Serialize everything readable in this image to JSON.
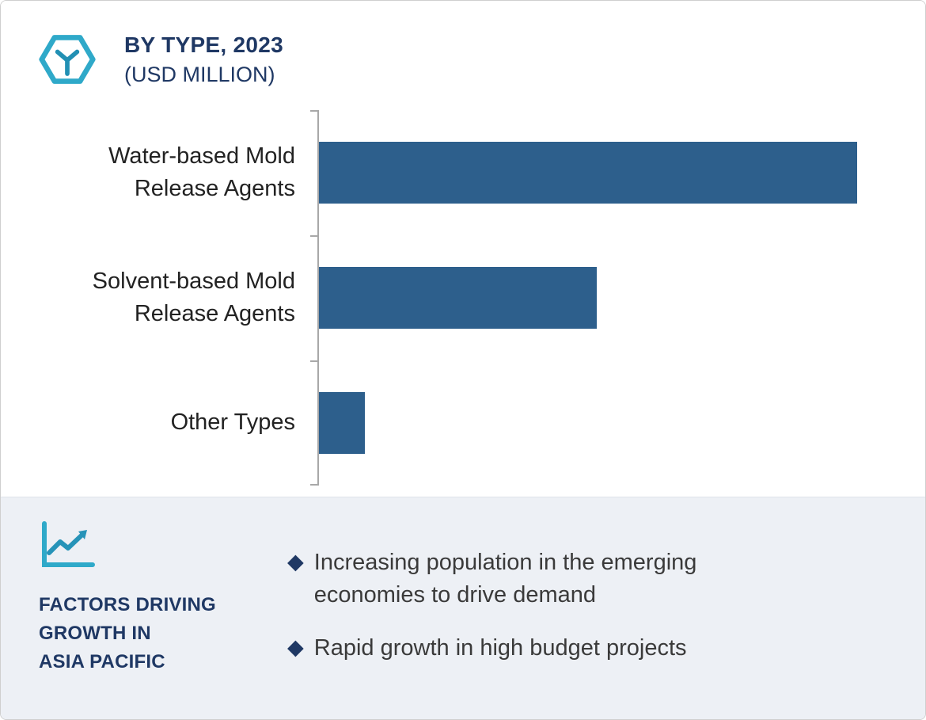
{
  "header": {
    "title": "BY TYPE, 2023",
    "subtitle": "(USD MILLION)"
  },
  "chart_data": {
    "type": "bar",
    "orientation": "horizontal",
    "title": "BY TYPE, 2023 (USD MILLION)",
    "categories": [
      "Water-based Mold Release Agents",
      "Solvent-based Mold Release Agents",
      "Other Types"
    ],
    "values": [
      100,
      51.6,
      8.5
    ],
    "xlim": [
      0,
      100
    ],
    "xlabel": "",
    "ylabel": "",
    "grid": false,
    "legend": false,
    "bar_color": "#2D5F8C"
  },
  "factors": {
    "heading": "FACTORS DRIVING\nGROWTH IN\nASIA PACIFIC",
    "bullets": [
      "Increasing population in the emerging economies to drive demand",
      "Rapid growth in high budget projects"
    ]
  },
  "icons": {
    "diamond_bullet": "◆"
  },
  "colors": {
    "bar": "#2D5F8C",
    "title_navy": "#1F3864",
    "accent_teal": "#2FA9C9",
    "panel_bg": "#EDF0F5",
    "body_text": "#3A3A3A"
  }
}
